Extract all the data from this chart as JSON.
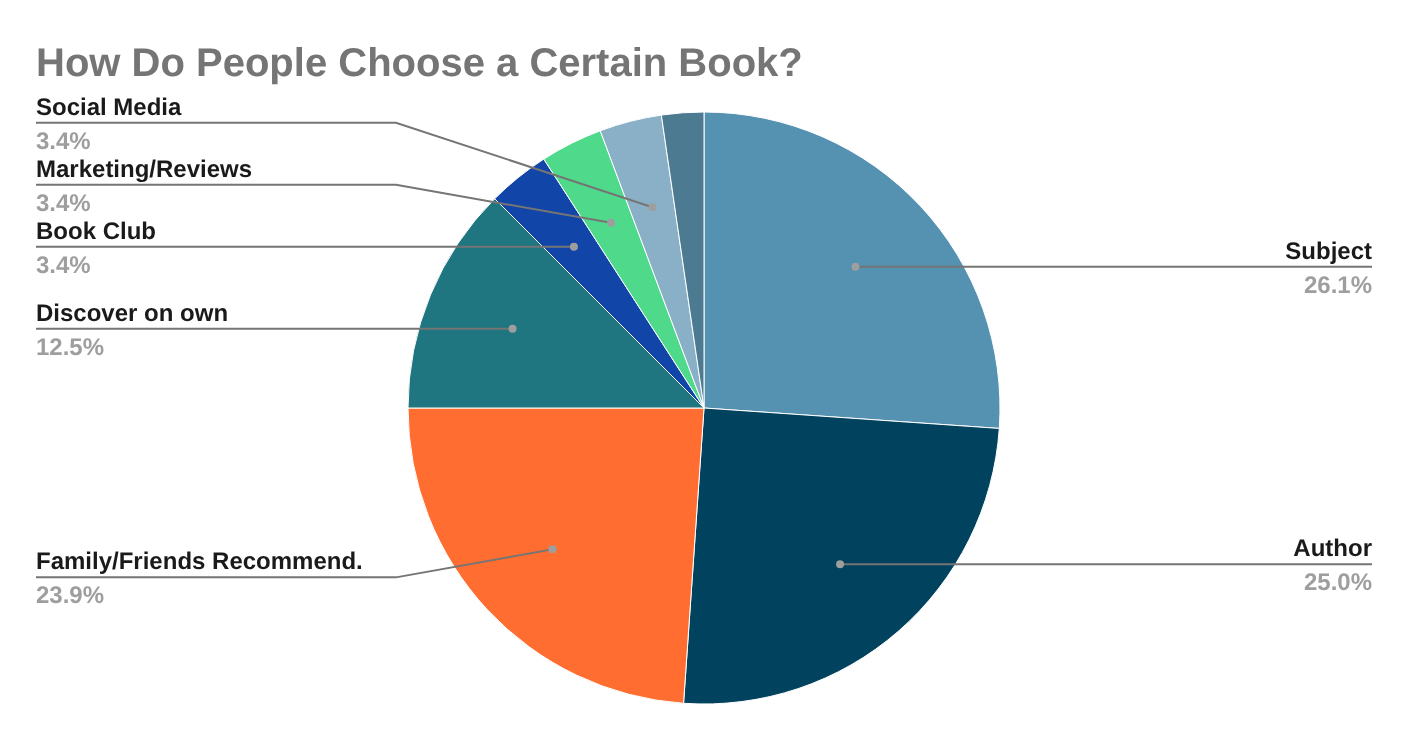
{
  "chart_data": {
    "type": "pie",
    "title": "How Do People Choose a Certain Book?",
    "categories": [
      "Subject",
      "Author",
      "Family/Friends Recommend.",
      "Discover on own",
      "Book Club",
      "Marketing/Reviews",
      "Social Media",
      null
    ],
    "values": [
      26.1,
      25.0,
      23.9,
      12.5,
      3.4,
      3.4,
      3.4,
      2.3
    ],
    "colors": [
      "#5591b0",
      "#01425e",
      "#ff6d31",
      "#1f7580",
      "#1245a8",
      "#4fd98a",
      "#89b0c6",
      "#4c7a91"
    ],
    "value_labels": [
      "26.1%",
      "25.0%",
      "23.9%",
      "12.5%",
      "3.4%",
      "3.4%",
      "3.4%",
      null
    ]
  }
}
